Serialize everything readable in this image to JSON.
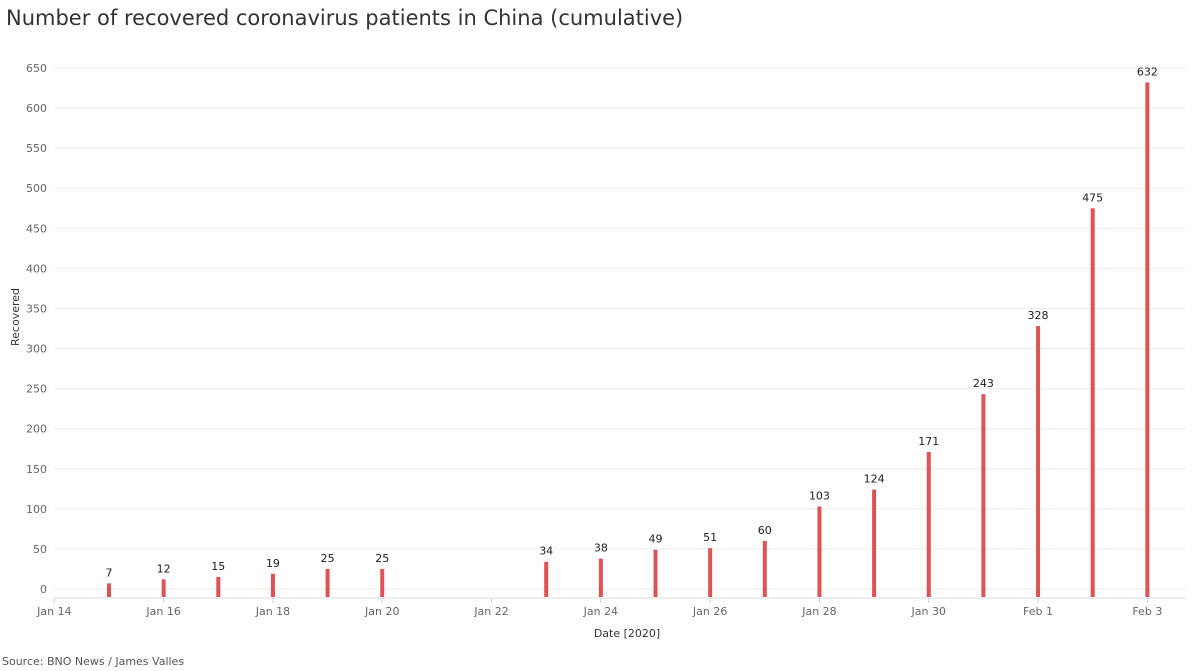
{
  "chart_data": {
    "type": "bar",
    "title": "Number of recovered coronavirus patients in China (cumulative)",
    "xlabel": "Date [2020]",
    "ylabel": "Recovered",
    "source": "Source: BNO News / James Valles",
    "bar_color": "#e05254",
    "ylim": [
      0,
      650
    ],
    "yticks": [
      0,
      50,
      100,
      150,
      200,
      250,
      300,
      350,
      400,
      450,
      500,
      550,
      600,
      650
    ],
    "grid": true,
    "x_ticks": [
      {
        "date": "2020-01-14",
        "label": "Jan 14"
      },
      {
        "date": "2020-01-16",
        "label": "Jan 16"
      },
      {
        "date": "2020-01-18",
        "label": "Jan 18"
      },
      {
        "date": "2020-01-20",
        "label": "Jan 20"
      },
      {
        "date": "2020-01-22",
        "label": "Jan 22"
      },
      {
        "date": "2020-01-24",
        "label": "Jan 24"
      },
      {
        "date": "2020-01-26",
        "label": "Jan 26"
      },
      {
        "date": "2020-01-28",
        "label": "Jan 28"
      },
      {
        "date": "2020-01-30",
        "label": "Jan 30"
      },
      {
        "date": "2020-02-01",
        "label": "Feb 1"
      },
      {
        "date": "2020-02-03",
        "label": "Feb 3"
      }
    ],
    "points": [
      {
        "date": "2020-01-15",
        "value": 7
      },
      {
        "date": "2020-01-16",
        "value": 12
      },
      {
        "date": "2020-01-17",
        "value": 15
      },
      {
        "date": "2020-01-18",
        "value": 19
      },
      {
        "date": "2020-01-19",
        "value": 25
      },
      {
        "date": "2020-01-20",
        "value": 25
      },
      {
        "date": "2020-01-23",
        "value": 34
      },
      {
        "date": "2020-01-24",
        "value": 38
      },
      {
        "date": "2020-01-25",
        "value": 49
      },
      {
        "date": "2020-01-26",
        "value": 51
      },
      {
        "date": "2020-01-27",
        "value": 60
      },
      {
        "date": "2020-01-28",
        "value": 103
      },
      {
        "date": "2020-01-29",
        "value": 124
      },
      {
        "date": "2020-01-30",
        "value": 171
      },
      {
        "date": "2020-01-31",
        "value": 243
      },
      {
        "date": "2020-02-01",
        "value": 328
      },
      {
        "date": "2020-02-02",
        "value": 475
      },
      {
        "date": "2020-02-03",
        "value": 632
      }
    ]
  }
}
